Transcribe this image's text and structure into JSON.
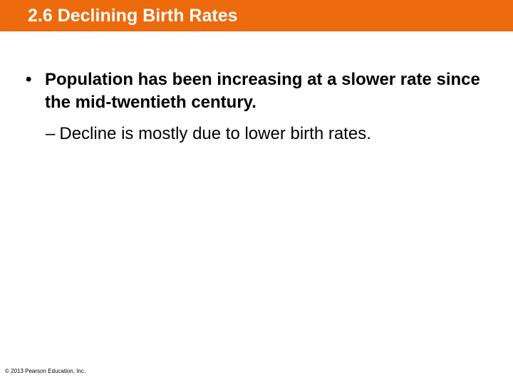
{
  "slide": {
    "title": "2.6 Declining Birth Rates",
    "bullets": [
      {
        "marker": "•",
        "text": "Population has been increasing at a slower rate since the mid-twentieth century.",
        "sub_bullets": [
          {
            "marker": "–",
            "text": "Decline is mostly due to lower birth rates."
          }
        ]
      }
    ],
    "footer": {
      "copyright": "© 2013 Pearson Education, Inc."
    }
  },
  "colors": {
    "title_bar": "#ec6a0c",
    "title_text": "#ffffff",
    "body_text": "#000000",
    "background": "#ffffff"
  }
}
